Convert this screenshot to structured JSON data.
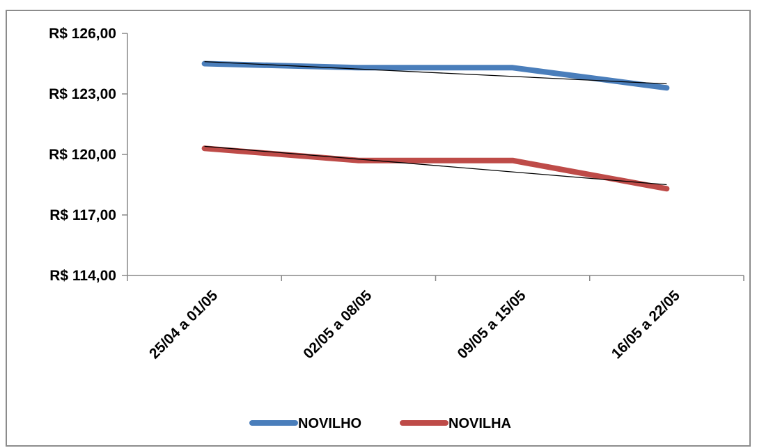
{
  "chart_data": {
    "type": "line",
    "title": "",
    "xlabel": "",
    "ylabel": "",
    "categories": [
      "25/04 a 01/05",
      "02/05 a 08/05",
      "09/05 a 15/05",
      "16/05 a 22/05"
    ],
    "ylim": [
      114,
      126
    ],
    "yticks": [
      126,
      123,
      120,
      117,
      114
    ],
    "ytick_labels": [
      "R$ 126,00",
      "R$ 123,00",
      "R$ 120,00",
      "R$ 117,00",
      "R$ 114,00"
    ],
    "grid": false,
    "legend": "bottom",
    "trendlines": true,
    "series": [
      {
        "name": "NOVILHO",
        "color": "#4a7ebb",
        "values": [
          124.5,
          124.3,
          124.3,
          123.3
        ],
        "trend": [
          124.6,
          123.5
        ]
      },
      {
        "name": "NOVILHA",
        "color": "#be4b48",
        "values": [
          120.3,
          119.7,
          119.7,
          118.3
        ],
        "trend": [
          120.4,
          118.5
        ]
      }
    ],
    "trend_color": "#000000"
  }
}
